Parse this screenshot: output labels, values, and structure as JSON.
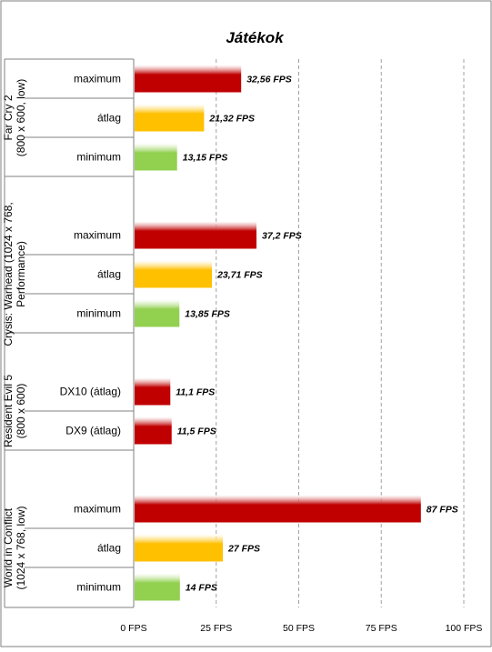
{
  "chart_data": {
    "type": "bar",
    "orientation": "horizontal",
    "title": "Játékok",
    "xlabel": "",
    "ylabel": "",
    "xlim": [
      0,
      100
    ],
    "x_ticks": [
      0,
      25,
      50,
      75,
      100
    ],
    "x_tick_labels": [
      "0 FPS",
      "25 FPS",
      "50 FPS",
      "75 FPS",
      "100 FPS"
    ],
    "grid": "vertical-dashed",
    "legend": "none",
    "value_suffix": " FPS",
    "groups": [
      {
        "label_lines": [
          "Far Cry 2",
          "(800 x 600, low)"
        ],
        "bars": [
          {
            "label": "maximum",
            "value": 32.56,
            "value_label": "32,56 FPS",
            "kind": "max"
          },
          {
            "label": "átlag",
            "value": 21.32,
            "value_label": "21,32 FPS",
            "kind": "avg"
          },
          {
            "label": "minimum",
            "value": 13.15,
            "value_label": "13,15 FPS",
            "kind": "min"
          }
        ]
      },
      {
        "label_lines": [
          "Crysis: Warhead (1024 x 768,",
          "Performance)"
        ],
        "bars": [
          {
            "label": "maximum",
            "value": 37.2,
            "value_label": "37,2 FPS",
            "kind": "max"
          },
          {
            "label": "átlag",
            "value": 23.71,
            "value_label": "23,71 FPS",
            "kind": "avg"
          },
          {
            "label": "minimum",
            "value": 13.85,
            "value_label": "13,85 FPS",
            "kind": "min"
          }
        ]
      },
      {
        "label_lines": [
          "Resident Evil 5",
          "(800 x 600)"
        ],
        "bars": [
          {
            "label": "DX10 (átlag)",
            "value": 11.1,
            "value_label": "11,1 FPS",
            "kind": "max"
          },
          {
            "label": "DX9 (átlag)",
            "value": 11.5,
            "value_label": "11,5 FPS",
            "kind": "max"
          }
        ]
      },
      {
        "label_lines": [
          "World in Conflict",
          "(1024 x 768, low)"
        ],
        "bars": [
          {
            "label": "maximum",
            "value": 87,
            "value_label": "87 FPS",
            "kind": "max"
          },
          {
            "label": "átlag",
            "value": 27,
            "value_label": "27 FPS",
            "kind": "avg"
          },
          {
            "label": "minimum",
            "value": 14,
            "value_label": "14 FPS",
            "kind": "min"
          }
        ]
      }
    ],
    "colors": {
      "max": "#c00000",
      "avg": "#ffc000",
      "min": "#92d050",
      "grid": "#a0a0a0",
      "axis": "#808080",
      "border": "#7f7f7f"
    }
  }
}
